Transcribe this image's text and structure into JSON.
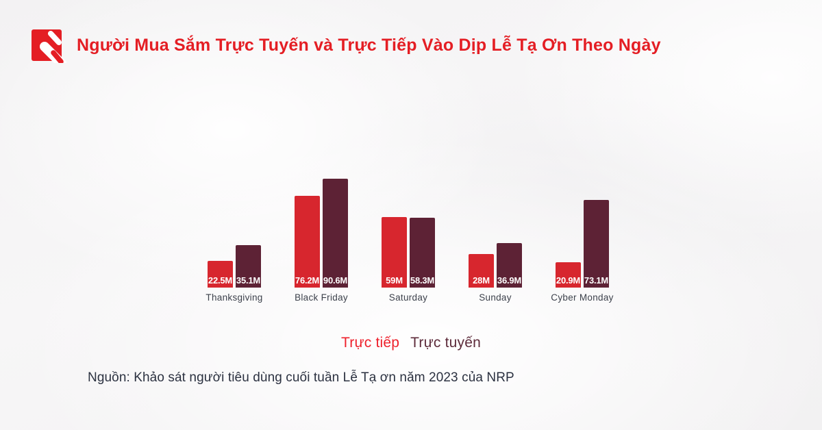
{
  "header": {
    "title": "Người Mua Sắm Trực Tuyến và Trực Tiếp Vào Dịp Lễ Tạ Ơn Theo Ngày"
  },
  "colors": {
    "title": "#e41e24",
    "logo": "#e41e24",
    "in_person_bar": "#d7262e",
    "online_bar": "#5d2235",
    "axis_label": "#3c414b",
    "source_text": "#2b3140"
  },
  "chart_data": {
    "type": "bar",
    "title": "Người Mua Sắm Trực Tuyến và Trực Tiếp Vào Dịp Lễ Tạ Ơn Theo Ngày",
    "categories": [
      "Thanksgiving",
      "Black Friday",
      "Saturday",
      "Sunday",
      "Cyber Monday"
    ],
    "series": [
      {
        "name": "Trực tiếp",
        "color": "#d7262e",
        "values": [
          22.5,
          76.2,
          59,
          28,
          20.9
        ],
        "labels": [
          "22.5M",
          "76.2M",
          "59M",
          "28M",
          "20.9M"
        ]
      },
      {
        "name": "Trực tuyến",
        "color": "#5d2235",
        "values": [
          35.1,
          90.6,
          58.3,
          36.9,
          73.1
        ],
        "labels": [
          "35.1M",
          "90.6M",
          "58.3M",
          "36.9M",
          "73.1M"
        ]
      }
    ],
    "unit": "M",
    "ylim": [
      0,
      90.6
    ],
    "grid": false,
    "legend_position": "bottom",
    "value_label_position": "inside-bottom"
  },
  "legend": {
    "items": [
      {
        "label": "Trực tiếp",
        "color": "#ee202b"
      },
      {
        "label": "Trực tuyến",
        "color": "#5d2b3a"
      }
    ]
  },
  "source": {
    "text": "Nguồn: Khảo sát người tiêu dùng cuối tuần Lễ Tạ ơn năm 2023 của NRP"
  }
}
